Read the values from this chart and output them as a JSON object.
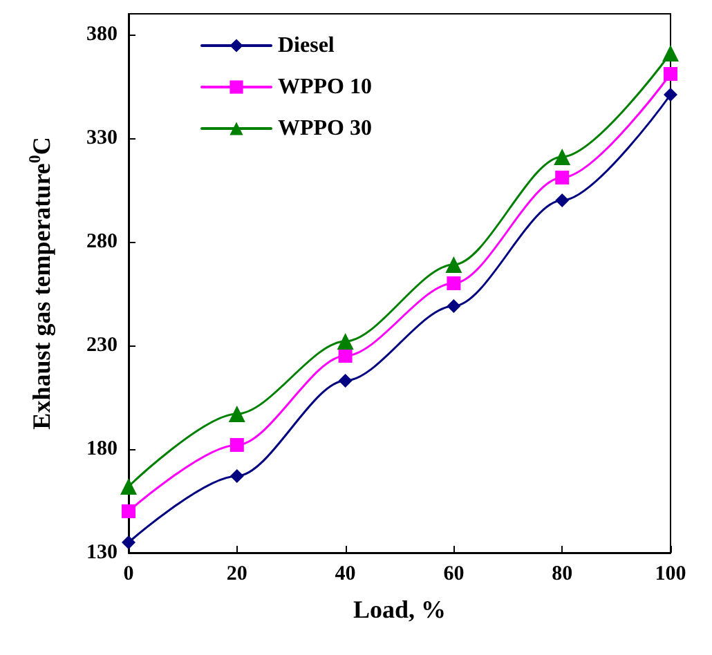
{
  "chart_data": {
    "type": "line",
    "xlabel": "Load, %",
    "ylabel": "Exhaust gas temperature$^{0}$C",
    "x": [
      0,
      20,
      40,
      60,
      80,
      100
    ],
    "series": [
      {
        "name": "Diesel",
        "color": "#000080",
        "marker": "diamond",
        "values": [
          135,
          167,
          213,
          249,
          300,
          351
        ]
      },
      {
        "name": "WPPO 10",
        "color": "#ff00ff",
        "marker": "square",
        "values": [
          150,
          182,
          225,
          260,
          311,
          361
        ]
      },
      {
        "name": "WPPO 30",
        "color": "#008000",
        "marker": "triangle",
        "values": [
          162,
          197,
          232,
          269,
          321,
          371
        ]
      }
    ],
    "xlim": [
      0,
      100
    ],
    "xticks": [
      0,
      20,
      40,
      60,
      80,
      100
    ],
    "ylim": [
      130,
      390
    ],
    "yticks": [
      130,
      180,
      230,
      280,
      330,
      380
    ],
    "grid": false,
    "legend": "top left",
    "line_style": "solid"
  }
}
